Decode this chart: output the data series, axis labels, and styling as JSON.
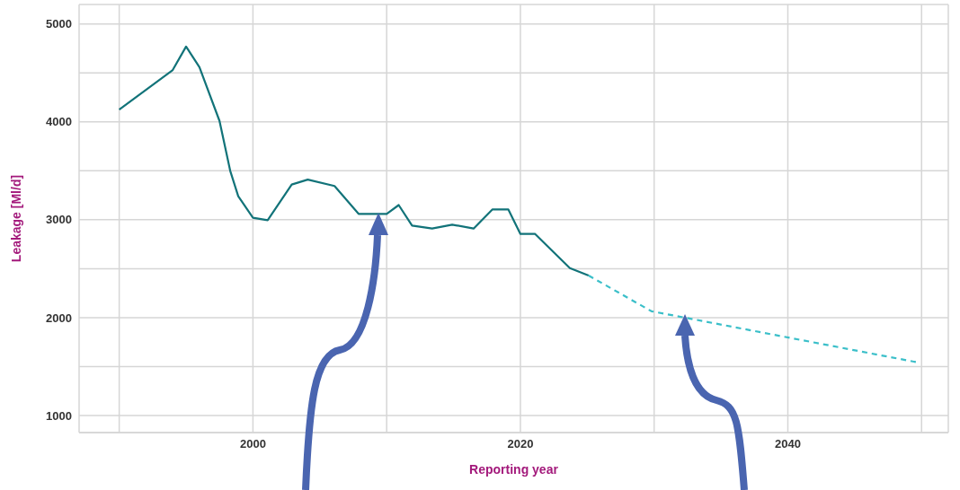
{
  "chart_data": {
    "type": "line",
    "xlabel": "Reporting year",
    "ylabel": "Leakage [Ml/d]",
    "xlim": [
      1987,
      2052
    ],
    "ylim": [
      825,
      5200
    ],
    "xticks": [
      {
        "value": 1990,
        "label": null
      },
      2000,
      {
        "value": 2010,
        "label": null
      },
      2020,
      {
        "value": 2030,
        "label": null
      },
      2040,
      {
        "value": 2050,
        "label": null
      }
    ],
    "yticks": [
      1000,
      {
        "value": 1500,
        "label": null
      },
      2000,
      {
        "value": 2500,
        "label": null
      },
      3000,
      {
        "value": 3500,
        "label": null
      },
      4000,
      {
        "value": 4500,
        "label": null
      },
      5000
    ],
    "grid": true,
    "marker": "none",
    "series": [
      {
        "color": "#127379",
        "line_style": "solid",
        "x": [
          1990,
          1994,
          1995,
          1996,
          1997.5,
          1998.3,
          1998.9,
          2000,
          2001.1,
          2002.9,
          2004.1,
          2006.1,
          2007.9,
          2010,
          2010.9,
          2011.9,
          2013.4,
          2014.9,
          2016.5,
          2017.9,
          2019.1,
          2020,
          2021.1,
          2023.7,
          2025.1
        ],
        "values": [
          4125,
          4530,
          4770,
          4560,
          4010,
          3500,
          3240,
          3020,
          2995,
          3360,
          3410,
          3345,
          3060,
          3060,
          3150,
          2940,
          2910,
          2950,
          2910,
          3105,
          3105,
          2855,
          2855,
          2505,
          2430
        ]
      },
      {
        "color": "#3bbfc9",
        "line_style": "dashed",
        "x": [
          2025.1,
          2029.8,
          2031.9,
          2049.6
        ],
        "values": [
          2430,
          2065,
          2010,
          1545
        ]
      }
    ]
  }
}
